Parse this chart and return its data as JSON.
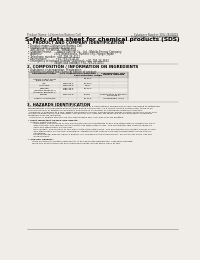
{
  "bg_color": "#f0ede8",
  "page_bg": "#f0ede8",
  "header_left": "Product Name: Lithium Ion Battery Cell",
  "header_right_line1": "Substance Number: SDS-LIB-00019",
  "header_right_line2": "Establishment / Revision: Dec.7.2016",
  "title": "Safety data sheet for chemical products (SDS)",
  "section1_title": "1. PRODUCT AND COMPANY IDENTIFICATION",
  "section1_lines": [
    "• Product name: Lithium Ion Battery Cell",
    "• Product code: Cylindrical-type cell",
    "   INR18650J, INR18650L, INR18650A",
    "• Company name:      Sanyo Electric Co., Ltd., Mobile Energy Company",
    "• Address:              2301 Kamikosaka, Sumoto City, Hyogo, Japan",
    "• Telephone number: +81-799-26-4111",
    "• Fax number:          +81-799-26-4120",
    "• Emergency telephone number (daytime): +81-799-26-3662",
    "                              (Night and holiday) +81-799-26-4101"
  ],
  "section2_title": "2. COMPOSITION / INFORMATION ON INGREDIENTS",
  "section2_line1": "• Substance or preparation: Preparation",
  "section2_line2": "• Information about the chemical nature of product:",
  "table_col_names": [
    "Component name",
    "CAS number",
    "Concentration /\nConcentration range",
    "Classification and\nhazard labeling"
  ],
  "table_rows": [
    [
      "Lithium cobalt oxide\n(LiMn-Co-Ni-O2)",
      "-",
      "30-60%",
      "-"
    ],
    [
      "Iron",
      "7439-89-6",
      "15-30%",
      "-"
    ],
    [
      "Aluminum",
      "7429-90-5",
      "2-5%",
      "-"
    ],
    [
      "Graphite\n(Mixture graphite-I)\n(Artificial graphite-I)",
      "7782-42-5\n7782-44-7",
      "10-20%",
      "-"
    ],
    [
      "Copper",
      "7440-50-8",
      "5-15%",
      "Sensitization of the skin\ngroup No.2"
    ],
    [
      "Organic electrolyte",
      "-",
      "10-20%",
      "Inflammable liquid"
    ]
  ],
  "section3_title": "3. HAZARDS IDENTIFICATION",
  "section3_para1": "For the battery cell, chemical materials are stored in a hermetically sealed metal case, designed to withstand\ntemperatures and pressures encountered during normal use. As a result, during normal use, there is no\nphysical danger of ignition or explosion and there is no danger of hazardous materials leakage.\n  However, if exposed to a fire, added mechanical shocks, decomposed, smiler electric shock my occur and\nthe gas release cannot be operated. The battery cell case will be breached at the extremes, hazardous\nmaterials may be released.\n  Moreover, if heated strongly by the surrounding fire, soot gas may be emitted.",
  "section3_bullet1": "• Most important hazard and effects:",
  "section3_human": "  Human health effects:",
  "section3_health_lines": [
    "      Inhalation: The release of the electrolyte has an anesthesia action and stimulates in respiratory tract.",
    "      Skin contact: The release of the electrolyte stimulates a skin. The electrolyte skin contact causes a",
    "      sore and stimulation on the skin.",
    "      Eye contact: The release of the electrolyte stimulates eyes. The electrolyte eye contact causes a sore",
    "      and stimulation on the eye. Especially, substance that causes a strong inflammation of the eyes is",
    "      contained.",
    "      Environmental effects: Since a battery cell remains in the environment, do not throw out it into the",
    "      environment."
  ],
  "section3_bullet2": "• Specific hazards:",
  "section3_specific": [
    "    If the electrolyte contacts with water, it will generate detrimental hydrogen fluoride.",
    "    Since the used electrolyte is inflammable liquid, do not bring close to fire."
  ],
  "line_color": "#888888",
  "text_color": "#222222",
  "header_color": "#444444",
  "table_header_bg": "#d0ccc8",
  "table_row_bg1": "#e8e5e0",
  "table_row_bg2": "#f0ede8"
}
